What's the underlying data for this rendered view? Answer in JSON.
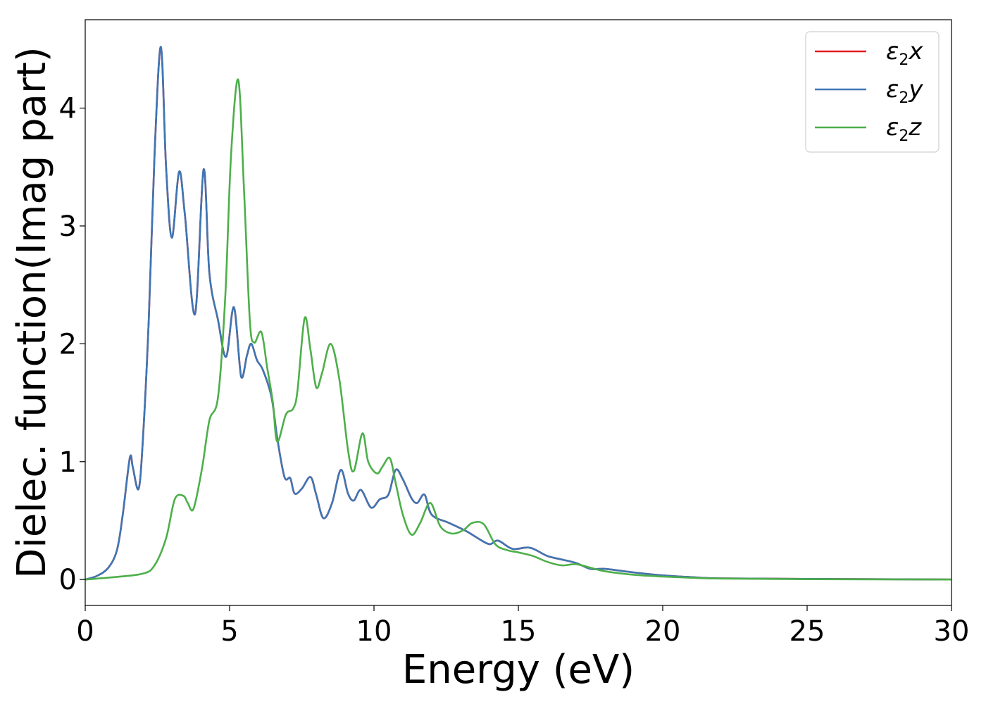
{
  "chart_data": {
    "type": "line",
    "title": "",
    "xlabel": "Energy (eV)",
    "ylabel": "Dielec. function(Imag part)",
    "xlim": [
      0,
      30
    ],
    "ylim": [
      -0.22,
      4.75
    ],
    "xticks": [
      0,
      5,
      10,
      15,
      20,
      25,
      30
    ],
    "yticks": [
      0,
      1,
      2,
      3,
      4
    ],
    "grid": false,
    "legend_position": "top-right",
    "series": [
      {
        "name": "ε2x",
        "name_base": "ε",
        "name_sub": "2",
        "name_var": "x",
        "color": "#e41a1c",
        "x": [
          0,
          0.4,
          0.8,
          1.1,
          1.3,
          1.55,
          1.65,
          1.85,
          2.0,
          2.2,
          2.4,
          2.62,
          2.8,
          3.0,
          3.25,
          3.45,
          3.8,
          4.1,
          4.3,
          4.6,
          4.88,
          5.15,
          5.4,
          5.6,
          5.75,
          5.95,
          6.15,
          6.45,
          6.65,
          6.9,
          7.1,
          7.25,
          7.5,
          7.8,
          8.0,
          8.25,
          8.55,
          8.85,
          9.1,
          9.3,
          9.55,
          9.9,
          10.2,
          10.5,
          10.75,
          11.0,
          11.3,
          11.5,
          11.75,
          12.0,
          12.6,
          13.2,
          13.6,
          14.0,
          14.3,
          14.8,
          15.4,
          16.0,
          16.5,
          17.0,
          17.5,
          18.0,
          19.0,
          20.0,
          21.0,
          22.0,
          25.0,
          30.0
        ],
        "y": [
          0,
          0.03,
          0.1,
          0.25,
          0.55,
          1.04,
          0.95,
          0.77,
          1.2,
          2.2,
          3.6,
          4.52,
          3.5,
          2.9,
          3.46,
          3.1,
          2.25,
          3.48,
          2.6,
          2.2,
          1.89,
          2.31,
          1.72,
          1.9,
          2.0,
          1.86,
          1.78,
          1.55,
          1.2,
          0.87,
          0.86,
          0.73,
          0.77,
          0.87,
          0.72,
          0.52,
          0.65,
          0.93,
          0.73,
          0.67,
          0.76,
          0.61,
          0.68,
          0.72,
          0.93,
          0.85,
          0.69,
          0.65,
          0.72,
          0.55,
          0.48,
          0.41,
          0.35,
          0.3,
          0.33,
          0.26,
          0.27,
          0.2,
          0.17,
          0.14,
          0.09,
          0.09,
          0.06,
          0.035,
          0.02,
          0.01,
          0.005,
          0
        ]
      },
      {
        "name": "ε2y",
        "name_base": "ε",
        "name_sub": "2",
        "name_var": "y",
        "color": "#3f76b4",
        "x": [
          0,
          0.4,
          0.8,
          1.1,
          1.3,
          1.55,
          1.65,
          1.85,
          2.0,
          2.2,
          2.4,
          2.62,
          2.8,
          3.0,
          3.25,
          3.45,
          3.8,
          4.1,
          4.3,
          4.6,
          4.88,
          5.15,
          5.4,
          5.6,
          5.75,
          5.95,
          6.15,
          6.45,
          6.65,
          6.9,
          7.1,
          7.25,
          7.5,
          7.8,
          8.0,
          8.25,
          8.55,
          8.85,
          9.1,
          9.3,
          9.55,
          9.9,
          10.2,
          10.5,
          10.75,
          11.0,
          11.3,
          11.5,
          11.75,
          12.0,
          12.6,
          13.2,
          13.6,
          14.0,
          14.3,
          14.8,
          15.4,
          16.0,
          16.5,
          17.0,
          17.5,
          18.0,
          19.0,
          20.0,
          21.0,
          22.0,
          25.0,
          30.0
        ],
        "y": [
          0,
          0.03,
          0.1,
          0.25,
          0.55,
          1.04,
          0.95,
          0.77,
          1.2,
          2.2,
          3.6,
          4.52,
          3.5,
          2.9,
          3.46,
          3.1,
          2.25,
          3.48,
          2.6,
          2.2,
          1.89,
          2.31,
          1.72,
          1.9,
          2.0,
          1.86,
          1.78,
          1.55,
          1.2,
          0.87,
          0.86,
          0.73,
          0.77,
          0.87,
          0.72,
          0.52,
          0.65,
          0.93,
          0.73,
          0.67,
          0.76,
          0.61,
          0.68,
          0.72,
          0.93,
          0.85,
          0.69,
          0.65,
          0.72,
          0.55,
          0.48,
          0.41,
          0.35,
          0.3,
          0.33,
          0.26,
          0.27,
          0.2,
          0.17,
          0.14,
          0.09,
          0.09,
          0.06,
          0.035,
          0.02,
          0.01,
          0.005,
          0
        ]
      },
      {
        "name": "ε2z",
        "name_base": "ε",
        "name_sub": "2",
        "name_var": "z",
        "color": "#4daf4a",
        "x": [
          0,
          1.0,
          2.0,
          2.4,
          2.8,
          3.1,
          3.4,
          3.55,
          3.75,
          4.05,
          4.3,
          4.6,
          4.85,
          5.05,
          5.3,
          5.5,
          5.7,
          5.85,
          6.1,
          6.3,
          6.5,
          6.65,
          6.95,
          7.2,
          7.35,
          7.6,
          7.8,
          8.0,
          8.2,
          8.5,
          8.8,
          9.1,
          9.3,
          9.6,
          9.8,
          10.1,
          10.3,
          10.55,
          10.75,
          11.0,
          11.3,
          11.6,
          11.95,
          12.3,
          12.7,
          13.1,
          13.4,
          13.8,
          14.2,
          14.6,
          15.0,
          15.5,
          16.0,
          16.5,
          17.0,
          17.5,
          18.0,
          19.0,
          20.0,
          21.0,
          22.0,
          25.0,
          30.0
        ],
        "y": [
          0,
          0.02,
          0.05,
          0.12,
          0.35,
          0.68,
          0.71,
          0.65,
          0.6,
          0.95,
          1.35,
          1.55,
          2.4,
          3.6,
          4.24,
          3.3,
          2.2,
          2.01,
          2.1,
          1.8,
          1.5,
          1.17,
          1.4,
          1.45,
          1.6,
          2.22,
          1.95,
          1.63,
          1.75,
          2.0,
          1.7,
          1.1,
          0.92,
          1.24,
          1.0,
          0.9,
          0.96,
          1.03,
          0.82,
          0.55,
          0.38,
          0.48,
          0.65,
          0.45,
          0.39,
          0.42,
          0.48,
          0.47,
          0.3,
          0.25,
          0.23,
          0.2,
          0.15,
          0.12,
          0.13,
          0.1,
          0.07,
          0.04,
          0.025,
          0.015,
          0.008,
          0.003,
          0
        ]
      }
    ]
  }
}
